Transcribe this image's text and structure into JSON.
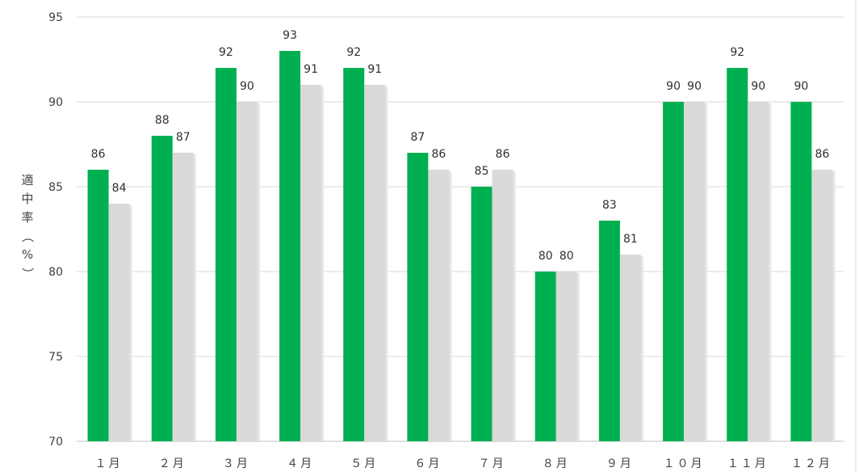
{
  "chart_data": {
    "type": "bar",
    "ylabel": "適中率（%）",
    "ylim": [
      70,
      95
    ],
    "yticks": [
      70,
      75,
      80,
      85,
      90,
      95
    ],
    "grid": true,
    "categories": [
      "１月",
      "２月",
      "３月",
      "４月",
      "５月",
      "６月",
      "７月",
      "８月",
      "９月",
      "１０月",
      "１１月",
      "１２月"
    ],
    "series": [
      {
        "color": "#00b050",
        "values": [
          86,
          88,
          92,
          93,
          92,
          87,
          85,
          80,
          83,
          90,
          92,
          90
        ]
      },
      {
        "color": "#d9d9d9",
        "values": [
          84,
          87,
          90,
          91,
          91,
          86,
          86,
          80,
          81,
          90,
          90,
          86
        ]
      }
    ]
  }
}
